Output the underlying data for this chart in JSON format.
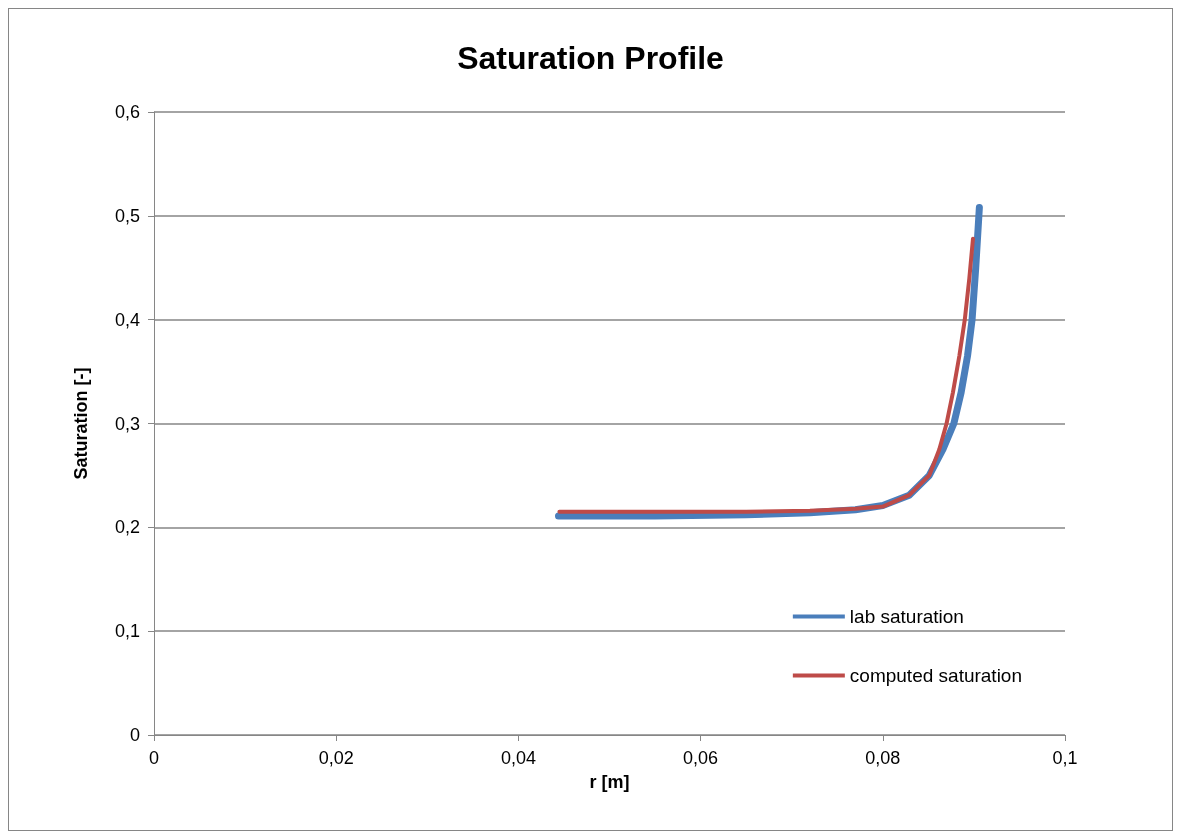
{
  "chart_data": {
    "type": "line",
    "title": "Saturation Profile",
    "xlabel": "r [m]",
    "ylabel": "Saturation [-]",
    "series": [
      {
        "name": "lab saturation",
        "color": "#4a7ebb",
        "x": [
          0.0444,
          0.055,
          0.065,
          0.072,
          0.077,
          0.08,
          0.0829,
          0.0851,
          0.0866,
          0.0878,
          0.0886,
          0.0893,
          0.0898,
          0.0902,
          0.0906
        ],
        "values": [
          0.211,
          0.211,
          0.212,
          0.214,
          0.217,
          0.221,
          0.231,
          0.25,
          0.275,
          0.3,
          0.33,
          0.365,
          0.4,
          0.45,
          0.508
        ]
      },
      {
        "name": "computed saturation",
        "color": "#be4b48",
        "x": [
          0.0445,
          0.055,
          0.065,
          0.072,
          0.077,
          0.08,
          0.0829,
          0.0851,
          0.0862,
          0.087,
          0.0877,
          0.0884,
          0.089,
          0.0895,
          0.0899
        ],
        "values": [
          0.215,
          0.215,
          0.215,
          0.216,
          0.218,
          0.22,
          0.231,
          0.25,
          0.275,
          0.3,
          0.33,
          0.365,
          0.4,
          0.44,
          0.478
        ]
      }
    ],
    "xlim": [
      0,
      0.1
    ],
    "xticks": [
      0,
      {
        "value": 0.02,
        "label": "0,02"
      },
      {
        "value": 0.04,
        "label": "0,04"
      },
      {
        "value": 0.06,
        "label": "0,06"
      },
      {
        "value": 0.08,
        "label": "0,08"
      },
      {
        "value": 0.1,
        "label": "0,1"
      }
    ],
    "ylim": [
      0,
      0.6
    ],
    "yticks": [
      0,
      {
        "value": 0.1,
        "label": "0,1"
      },
      {
        "value": 0.2,
        "label": "0,2"
      },
      {
        "value": 0.3,
        "label": "0,3"
      },
      {
        "value": 0.4,
        "label": "0,4"
      },
      {
        "value": 0.5,
        "label": "0,5"
      },
      {
        "value": 0.6,
        "label": "0,6"
      }
    ],
    "grid": "y",
    "legend": "bottom right",
    "marker": "none",
    "line_style": "solid"
  }
}
